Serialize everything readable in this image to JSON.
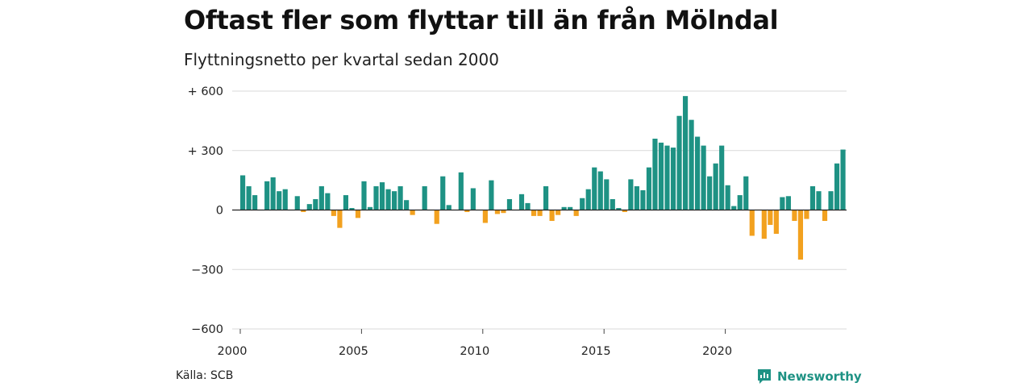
{
  "title": "Oftast fler som flyttar till än från Mölndal",
  "subtitle": "Flyttningsnetto per kvartal sedan 2000",
  "source": "Källa: SCB",
  "brand": "Newsworthy",
  "colors": {
    "positive": "#1e9284",
    "negative": "#f2a11f",
    "grid": "#d9d9d9",
    "baseline": "#222222",
    "brand": "#1e9284"
  },
  "chart_data": {
    "type": "bar",
    "title": "Oftast fler som flyttar till än från Mölndal",
    "subtitle": "Flyttningsnetto per kvartal sedan 2000",
    "xlabel": "",
    "ylabel": "",
    "ylim": [
      -600,
      600
    ],
    "yticks": [
      600,
      300,
      0,
      -300,
      -600
    ],
    "ytick_labels": [
      "+ 600",
      "+ 300",
      "0",
      "−300",
      "−600"
    ],
    "xlim": [
      2000,
      2025
    ],
    "xticks": [
      2000,
      2005,
      2010,
      2015,
      2020
    ],
    "xtick_labels": [
      "2000",
      "2005",
      "2010",
      "2015",
      "2020"
    ],
    "grid": true,
    "start_year": 2000,
    "quarters_per_year": 4,
    "values": [
      175,
      120,
      75,
      0,
      145,
      165,
      95,
      105,
      0,
      70,
      -10,
      30,
      55,
      120,
      85,
      -30,
      -90,
      75,
      10,
      -40,
      145,
      15,
      120,
      140,
      105,
      95,
      120,
      50,
      -25,
      0,
      120,
      0,
      -70,
      170,
      25,
      0,
      190,
      -10,
      110,
      0,
      -65,
      150,
      -20,
      -15,
      55,
      0,
      80,
      35,
      -30,
      -30,
      120,
      -55,
      -25,
      15,
      15,
      -30,
      60,
      105,
      215,
      195,
      155,
      55,
      10,
      -10,
      155,
      120,
      100,
      215,
      360,
      340,
      325,
      315,
      475,
      575,
      455,
      370,
      325,
      170,
      235,
      325,
      125,
      20,
      75,
      170,
      -130,
      0,
      -145,
      -75,
      -120,
      65,
      70,
      -55,
      -250,
      -45,
      120,
      95,
      -55,
      95,
      235,
      305
    ]
  }
}
